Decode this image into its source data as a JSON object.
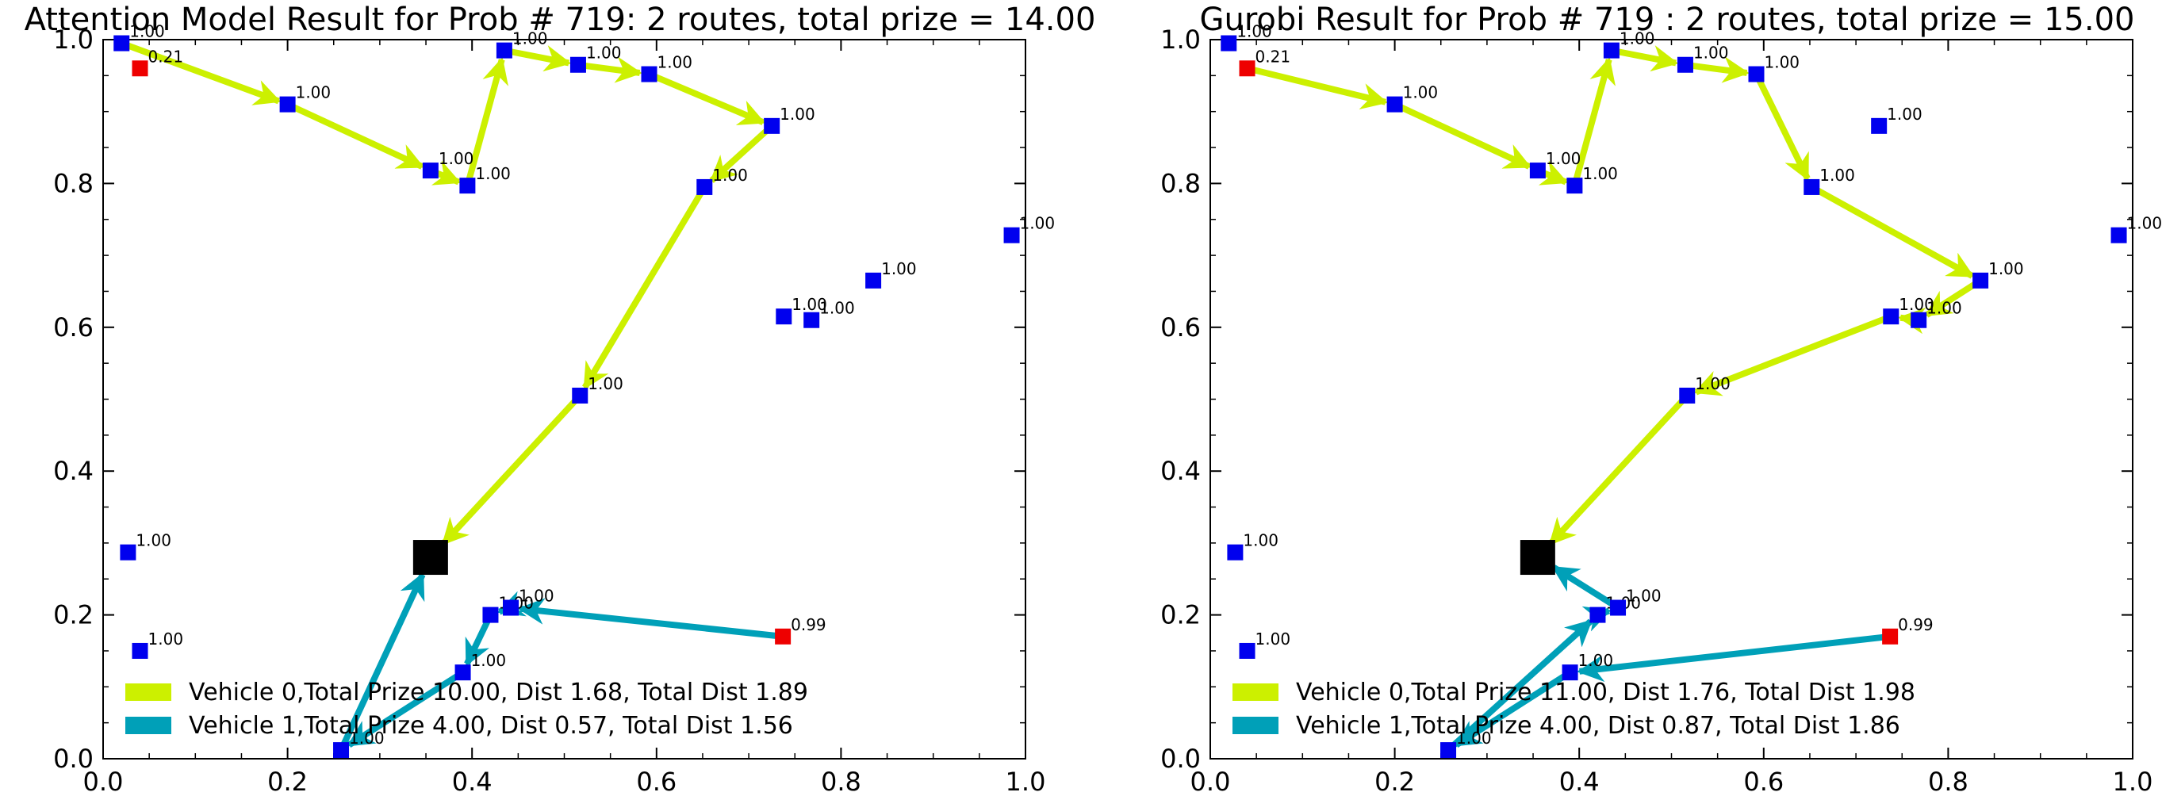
{
  "colors": {
    "vehicle0": "#ccf000",
    "vehicle1": "#00a0b8",
    "node_full": "#0000ee",
    "node_partial": "#ee0000",
    "depot": "#000000"
  },
  "chart_data": [
    {
      "type": "scatter",
      "title": "Attention Model Result for Prob # 719: 2 routes, total prize = 14.00",
      "xlim": [
        0,
        1
      ],
      "ylim": [
        0,
        1
      ],
      "xticks": [
        "0.0",
        "0.2",
        "0.4",
        "0.6",
        "0.8",
        "1.0"
      ],
      "yticks": [
        "0.0",
        "0.2",
        "0.4",
        "0.6",
        "0.8",
        "1.0"
      ],
      "legend_position": "lower-left",
      "depot": {
        "x": 0.355,
        "y": 0.28
      },
      "nodes": [
        {
          "x": 0.02,
          "y": 0.995,
          "label": "1.00",
          "color": "blue"
        },
        {
          "x": 0.04,
          "y": 0.96,
          "label": "0.21",
          "color": "red"
        },
        {
          "x": 0.2,
          "y": 0.91,
          "label": "1.00",
          "color": "blue"
        },
        {
          "x": 0.355,
          "y": 0.818,
          "label": "1.00",
          "color": "blue"
        },
        {
          "x": 0.395,
          "y": 0.797,
          "label": "1.00",
          "color": "blue"
        },
        {
          "x": 0.435,
          "y": 0.985,
          "label": "1.00",
          "color": "blue"
        },
        {
          "x": 0.515,
          "y": 0.965,
          "label": "1.00",
          "color": "blue"
        },
        {
          "x": 0.592,
          "y": 0.952,
          "label": "1.00",
          "color": "blue"
        },
        {
          "x": 0.725,
          "y": 0.88,
          "label": "1.00",
          "color": "blue"
        },
        {
          "x": 0.652,
          "y": 0.795,
          "label": "1.00",
          "color": "blue"
        },
        {
          "x": 0.517,
          "y": 0.505,
          "label": "1.00",
          "color": "blue"
        },
        {
          "x": 0.985,
          "y": 0.728,
          "label": "1.00",
          "color": "blue"
        },
        {
          "x": 0.835,
          "y": 0.665,
          "label": "1.00",
          "color": "blue"
        },
        {
          "x": 0.738,
          "y": 0.615,
          "label": "1.00",
          "color": "blue"
        },
        {
          "x": 0.768,
          "y": 0.61,
          "label": "1.00",
          "color": "blue"
        },
        {
          "x": 0.027,
          "y": 0.287,
          "label": "1.00",
          "color": "blue"
        },
        {
          "x": 0.04,
          "y": 0.15,
          "label": "1.00",
          "color": "blue"
        },
        {
          "x": 0.42,
          "y": 0.2,
          "label": "1.00",
          "color": "blue"
        },
        {
          "x": 0.442,
          "y": 0.21,
          "label": "1.00",
          "color": "blue"
        },
        {
          "x": 0.39,
          "y": 0.12,
          "label": "1.00",
          "color": "blue"
        },
        {
          "x": 0.258,
          "y": 0.012,
          "label": "1.00",
          "color": "blue"
        },
        {
          "x": 0.737,
          "y": 0.17,
          "label": "0.99",
          "color": "red"
        }
      ],
      "routes": [
        {
          "name": "Vehicle 0,Total Prize 10.00, Dist 1.68, Total Dist 1.89",
          "color": "vehicle0",
          "points": [
            [
              0.02,
              0.995
            ],
            [
              0.2,
              0.91
            ],
            [
              0.355,
              0.818
            ],
            [
              0.395,
              0.797
            ],
            [
              0.435,
              0.985
            ],
            [
              0.515,
              0.965
            ],
            [
              0.592,
              0.952
            ],
            [
              0.725,
              0.88
            ],
            [
              0.652,
              0.795
            ],
            [
              0.517,
              0.505
            ],
            [
              0.355,
              0.28
            ]
          ]
        },
        {
          "name": "Vehicle 1,Total Prize 4.00, Dist 0.57, Total Dist 1.56",
          "color": "vehicle1",
          "points": [
            [
              0.737,
              0.17
            ],
            [
              0.442,
              0.21
            ],
            [
              0.42,
              0.2
            ],
            [
              0.39,
              0.12
            ],
            [
              0.258,
              0.012
            ],
            [
              0.355,
              0.28
            ]
          ]
        }
      ]
    },
    {
      "type": "scatter",
      "title": "Gurobi Result for Prob # 719 : 2 routes, total prize = 15.00",
      "xlim": [
        0,
        1
      ],
      "ylim": [
        0,
        1
      ],
      "xticks": [
        "0.0",
        "0.2",
        "0.4",
        "0.6",
        "0.8",
        "1.0"
      ],
      "yticks": [
        "0.0",
        "0.2",
        "0.4",
        "0.6",
        "0.8",
        "1.0"
      ],
      "legend_position": "lower-left",
      "depot": {
        "x": 0.355,
        "y": 0.28
      },
      "nodes": [
        {
          "x": 0.02,
          "y": 0.995,
          "label": "1.00",
          "color": "blue"
        },
        {
          "x": 0.04,
          "y": 0.96,
          "label": "0.21",
          "color": "red"
        },
        {
          "x": 0.2,
          "y": 0.91,
          "label": "1.00",
          "color": "blue"
        },
        {
          "x": 0.355,
          "y": 0.818,
          "label": "1.00",
          "color": "blue"
        },
        {
          "x": 0.395,
          "y": 0.797,
          "label": "1.00",
          "color": "blue"
        },
        {
          "x": 0.435,
          "y": 0.985,
          "label": "1.00",
          "color": "blue"
        },
        {
          "x": 0.515,
          "y": 0.965,
          "label": "1.00",
          "color": "blue"
        },
        {
          "x": 0.592,
          "y": 0.952,
          "label": "1.00",
          "color": "blue"
        },
        {
          "x": 0.725,
          "y": 0.88,
          "label": "1.00",
          "color": "blue"
        },
        {
          "x": 0.652,
          "y": 0.795,
          "label": "1.00",
          "color": "blue"
        },
        {
          "x": 0.517,
          "y": 0.505,
          "label": "1.00",
          "color": "blue"
        },
        {
          "x": 0.985,
          "y": 0.728,
          "label": "1.00",
          "color": "blue"
        },
        {
          "x": 0.835,
          "y": 0.665,
          "label": "1.00",
          "color": "blue"
        },
        {
          "x": 0.738,
          "y": 0.615,
          "label": "1.00",
          "color": "blue"
        },
        {
          "x": 0.768,
          "y": 0.61,
          "label": "1.00",
          "color": "blue"
        },
        {
          "x": 0.027,
          "y": 0.287,
          "label": "1.00",
          "color": "blue"
        },
        {
          "x": 0.04,
          "y": 0.15,
          "label": "1.00",
          "color": "blue"
        },
        {
          "x": 0.42,
          "y": 0.2,
          "label": "1.00",
          "color": "blue"
        },
        {
          "x": 0.442,
          "y": 0.21,
          "label": "1.00",
          "color": "blue"
        },
        {
          "x": 0.39,
          "y": 0.12,
          "label": "1.00",
          "color": "blue"
        },
        {
          "x": 0.258,
          "y": 0.012,
          "label": "1.00",
          "color": "blue"
        },
        {
          "x": 0.737,
          "y": 0.17,
          "label": "0.99",
          "color": "red"
        }
      ],
      "routes": [
        {
          "name": "Vehicle 0,Total Prize 11.00, Dist 1.76, Total Dist 1.98",
          "color": "vehicle0",
          "points": [
            [
              0.04,
              0.96
            ],
            [
              0.2,
              0.91
            ],
            [
              0.355,
              0.818
            ],
            [
              0.395,
              0.797
            ],
            [
              0.435,
              0.985
            ],
            [
              0.515,
              0.965
            ],
            [
              0.592,
              0.952
            ],
            [
              0.652,
              0.795
            ],
            [
              0.835,
              0.665
            ],
            [
              0.768,
              0.61
            ],
            [
              0.738,
              0.615
            ],
            [
              0.517,
              0.505
            ],
            [
              0.355,
              0.28
            ]
          ]
        },
        {
          "name": "Vehicle 1,Total Prize 4.00, Dist 0.87, Total Dist 1.86",
          "color": "vehicle1",
          "points": [
            [
              0.737,
              0.17
            ],
            [
              0.39,
              0.12
            ],
            [
              0.258,
              0.012
            ],
            [
              0.42,
              0.2
            ],
            [
              0.442,
              0.21
            ],
            [
              0.355,
              0.28
            ]
          ]
        }
      ]
    }
  ]
}
